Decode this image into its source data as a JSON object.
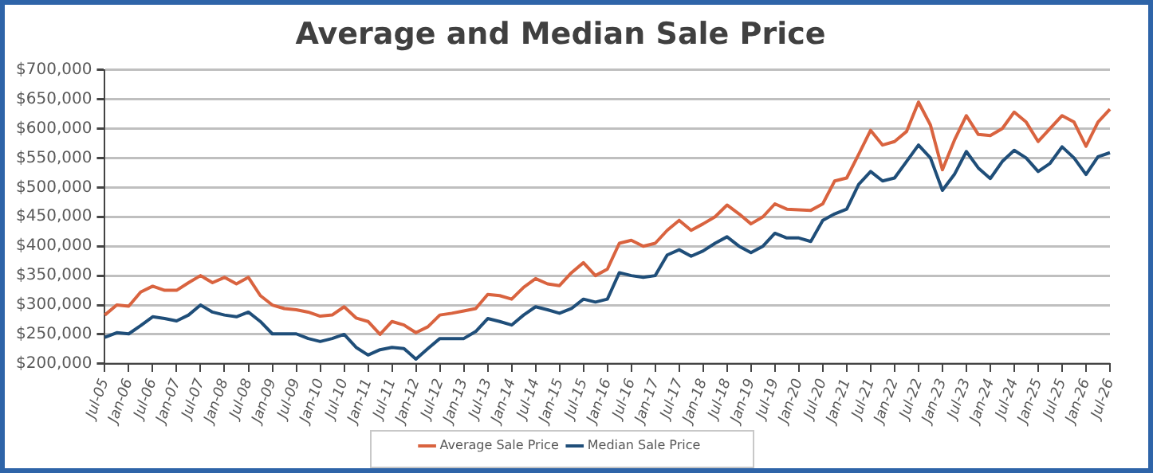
{
  "chart_data": {
    "type": "line",
    "title": "Average and Median Sale Price",
    "categories": [
      "Jul-05",
      null,
      "Jan-06",
      null,
      "Jul-06",
      null,
      "Jan-07",
      null,
      "Jul-07",
      null,
      "Jan-08",
      null,
      "Jul-08",
      null,
      "Jan-09",
      null,
      "Jul-09",
      null,
      "Jan-10",
      null,
      "Jul-10",
      null,
      "Jan-11",
      null,
      "Jul-11",
      null,
      "Jan-12",
      null,
      "Jul-12",
      null,
      "Jan-13",
      null,
      "Jul-13",
      null,
      "Jan-14",
      null,
      "Jul-14",
      null,
      "Jan-15",
      null,
      "Jul-15",
      null,
      "Jan-16",
      null,
      "Jul-16",
      null,
      "Jan-17",
      null,
      "Jul-17",
      null,
      "Jan-18",
      null,
      "Jul-18",
      null,
      "Jan-19",
      null,
      "Jul-19",
      null,
      "Jan-20",
      null,
      "Jul-20",
      null,
      "Jan-21",
      null,
      "Jul-21",
      null,
      "Jan-22",
      null,
      "Jul-22",
      null,
      "Jan-23",
      null,
      "Jul-23",
      null,
      "Jan-24",
      null,
      "Jul-24",
      null,
      "Jan-25",
      null,
      "Jul-25",
      null,
      "Jan-26",
      null,
      "Jul-26"
    ],
    "series": [
      {
        "name": "Average Sale Price",
        "color": "#d9633f",
        "values": [
          283000,
          300000,
          298000,
          322000,
          332000,
          325000,
          325000,
          338000,
          350000,
          338000,
          347000,
          336000,
          347000,
          316000,
          300000,
          294000,
          292000,
          288000,
          281000,
          283000,
          297000,
          278000,
          272000,
          250000,
          272000,
          266000,
          253000,
          263000,
          283000,
          286000,
          290000,
          294000,
          318000,
          316000,
          310000,
          330000,
          345000,
          336000,
          333000,
          355000,
          372000,
          350000,
          361000,
          405000,
          410000,
          400000,
          405000,
          427000,
          444000,
          427000,
          438000,
          450000,
          470000,
          455000,
          438000,
          450000,
          472000,
          463000,
          462000,
          461000,
          472000,
          511000,
          516000,
          556000,
          597000,
          572000,
          578000,
          595000,
          645000,
          606000,
          530000,
          580000,
          622000,
          590000,
          588000,
          600000,
          628000,
          611000,
          578000,
          600000,
          622000,
          611000,
          570000,
          611000,
          633000
        ]
      },
      {
        "name": "Median Sale Price",
        "color": "#1f4e79",
        "values": [
          245000,
          253000,
          251000,
          265000,
          280000,
          277000,
          273000,
          283000,
          300000,
          288000,
          283000,
          280000,
          288000,
          272000,
          251000,
          251000,
          251000,
          243000,
          238000,
          243000,
          250000,
          228000,
          215000,
          224000,
          228000,
          226000,
          208000,
          226000,
          243000,
          243000,
          243000,
          255000,
          277000,
          272000,
          266000,
          283000,
          297000,
          292000,
          286000,
          294000,
          310000,
          305000,
          310000,
          355000,
          350000,
          347000,
          350000,
          385000,
          394000,
          383000,
          392000,
          405000,
          416000,
          400000,
          389000,
          400000,
          422000,
          414000,
          414000,
          408000,
          444000,
          455000,
          463000,
          505000,
          527000,
          511000,
          516000,
          544000,
          572000,
          550000,
          495000,
          522000,
          561000,
          533000,
          515000,
          544000,
          563000,
          550000,
          527000,
          541000,
          569000,
          550000,
          522000,
          552000,
          559000
        ]
      }
    ],
    "ylim": [
      200000,
      700000
    ],
    "yticks": [
      {
        "value": 200000,
        "label": "$200,000"
      },
      {
        "value": 250000,
        "label": "$250,000"
      },
      {
        "value": 300000,
        "label": "$300,000"
      },
      {
        "value": 350000,
        "label": "$350,000"
      },
      {
        "value": 400000,
        "label": "$400,000"
      },
      {
        "value": 450000,
        "label": "$450,000"
      },
      {
        "value": 500000,
        "label": "$500,000"
      },
      {
        "value": 550000,
        "label": "$550,000"
      },
      {
        "value": 600000,
        "label": "$600,000"
      },
      {
        "value": 650000,
        "label": "$650,000"
      },
      {
        "value": 700000,
        "label": "$700,000"
      }
    ],
    "grid": "y",
    "legend": "bottom",
    "line_style": "solid"
  }
}
